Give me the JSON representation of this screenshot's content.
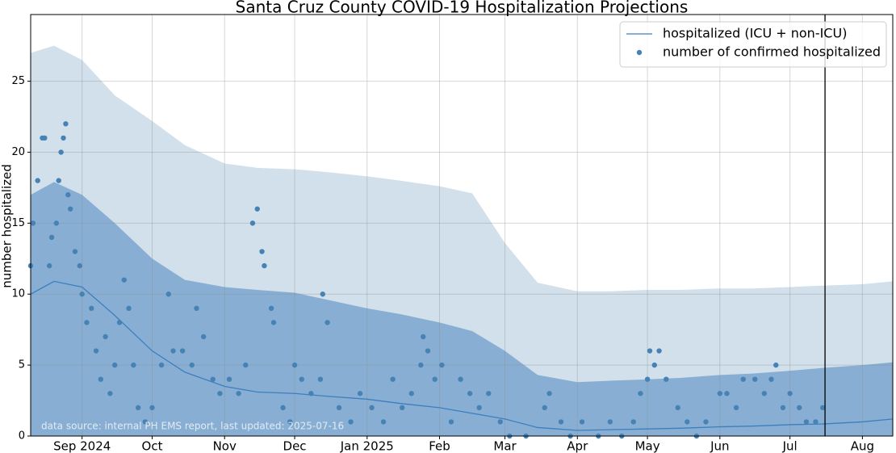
{
  "chart_data": {
    "type": "line",
    "title": "Santa Cruz County COVID-19 Hospitalization Projections",
    "y_label": "number hospitalized",
    "annotation": "data source: internal PH EMS report, last updated: 2025-07-16",
    "xlim": [
      "2024-08-10",
      "2025-08-14"
    ],
    "xticks": [
      {
        "value": "2024-09-01",
        "label": "Sep 2024"
      },
      {
        "value": "2024-10-01",
        "label": "Oct"
      },
      {
        "value": "2024-11-01",
        "label": "Nov"
      },
      {
        "value": "2024-12-01",
        "label": "Dec"
      },
      {
        "value": "2025-01-01",
        "label": "Jan 2025"
      },
      {
        "value": "2025-02-01",
        "label": "Feb"
      },
      {
        "value": "2025-03-01",
        "label": "Mar"
      },
      {
        "value": "2025-04-01",
        "label": "Apr"
      },
      {
        "value": "2025-05-01",
        "label": "May"
      },
      {
        "value": "2025-06-01",
        "label": "Jun"
      },
      {
        "value": "2025-07-01",
        "label": "Jul"
      },
      {
        "value": "2025-08-01",
        "label": "Aug"
      }
    ],
    "ylim": [
      0,
      29.7
    ],
    "yticks": [
      0,
      5,
      10,
      15,
      20,
      25
    ],
    "grid": true,
    "legend": "upper right",
    "vline_x": "2025-07-16",
    "band_x": [
      "2024-08-10",
      "2024-08-20",
      "2024-09-01",
      "2024-09-15",
      "2024-10-01",
      "2024-10-15",
      "2024-11-01",
      "2024-11-15",
      "2024-12-01",
      "2024-12-15",
      "2025-01-01",
      "2025-01-15",
      "2025-02-01",
      "2025-02-15",
      "2025-03-01",
      "2025-03-15",
      "2025-04-01",
      "2025-04-15",
      "2025-05-01",
      "2025-05-15",
      "2025-06-01",
      "2025-06-15",
      "2025-07-01",
      "2025-07-15",
      "2025-08-01",
      "2025-08-14"
    ],
    "bands": [
      {
        "color": "#d2e0ec",
        "upper": [
          27.0,
          27.5,
          26.5,
          24.0,
          22.2,
          20.5,
          19.2,
          18.9,
          18.8,
          18.6,
          18.3,
          18.0,
          17.6,
          17.1,
          13.6,
          10.8,
          10.2,
          10.2,
          10.3,
          10.3,
          10.4,
          10.4,
          10.5,
          10.6,
          10.7,
          10.9
        ],
        "lower": [
          2.5,
          3.9,
          3.0,
          0.5,
          0,
          0,
          0,
          0,
          0,
          0,
          0,
          0,
          0,
          0,
          0,
          0,
          0,
          0,
          0,
          0,
          0,
          0,
          0,
          0,
          0,
          0
        ]
      },
      {
        "color": "#88afd3",
        "upper": [
          17.0,
          17.9,
          17.0,
          15.0,
          12.5,
          11.0,
          10.5,
          10.3,
          10.1,
          9.6,
          9.0,
          8.6,
          8.0,
          7.4,
          6.0,
          4.3,
          3.8,
          3.9,
          4.0,
          4.1,
          4.3,
          4.4,
          4.6,
          4.8,
          5.0,
          5.2
        ],
        "lower": [
          0,
          0,
          0,
          0,
          0,
          0,
          0,
          0,
          0,
          0,
          0,
          0,
          0,
          0,
          0,
          0,
          0,
          0,
          0,
          0,
          0,
          0,
          0,
          0,
          0,
          0
        ]
      }
    ],
    "series": [
      {
        "name": "hospitalized (ICU + non-ICU)",
        "kind": "line",
        "color": "#3d7ebf",
        "x": [
          "2024-08-10",
          "2024-08-20",
          "2024-09-01",
          "2024-09-15",
          "2024-10-01",
          "2024-10-15",
          "2024-11-01",
          "2024-11-15",
          "2024-12-01",
          "2024-12-15",
          "2025-01-01",
          "2025-01-15",
          "2025-02-01",
          "2025-02-15",
          "2025-03-01",
          "2025-03-15",
          "2025-04-01",
          "2025-04-15",
          "2025-05-01",
          "2025-05-15",
          "2025-06-01",
          "2025-06-15",
          "2025-07-01",
          "2025-07-15",
          "2025-08-01",
          "2025-08-14"
        ],
        "values": [
          10.0,
          10.9,
          10.5,
          8.5,
          6.0,
          4.5,
          3.5,
          3.1,
          3.0,
          2.8,
          2.6,
          2.3,
          2.0,
          1.6,
          1.2,
          0.6,
          0.4,
          0.45,
          0.5,
          0.55,
          0.65,
          0.7,
          0.8,
          0.85,
          1.0,
          1.2
        ]
      },
      {
        "name": "number of confirmed hospitalized",
        "kind": "scatter",
        "color": "#4682b4",
        "x": [
          "2024-08-10",
          "2024-08-11",
          "2024-08-13",
          "2024-08-15",
          "2024-08-16",
          "2024-08-18",
          "2024-08-19",
          "2024-08-21",
          "2024-08-22",
          "2024-08-23",
          "2024-08-24",
          "2024-08-25",
          "2024-08-26",
          "2024-08-27",
          "2024-08-29",
          "2024-08-31",
          "2024-09-01",
          "2024-09-03",
          "2024-09-05",
          "2024-09-07",
          "2024-09-09",
          "2024-09-11",
          "2024-09-13",
          "2024-09-15",
          "2024-09-17",
          "2024-09-19",
          "2024-09-21",
          "2024-09-23",
          "2024-09-25",
          "2024-09-28",
          "2024-10-01",
          "2024-10-05",
          "2024-10-08",
          "2024-10-10",
          "2024-10-14",
          "2024-10-18",
          "2024-10-20",
          "2024-10-23",
          "2024-10-27",
          "2024-10-30",
          "2024-11-03",
          "2024-11-07",
          "2024-11-10",
          "2024-11-13",
          "2024-11-15",
          "2024-11-17",
          "2024-11-18",
          "2024-11-21",
          "2024-11-22",
          "2024-11-26",
          "2024-11-29",
          "2024-12-01",
          "2024-12-04",
          "2024-12-08",
          "2024-12-12",
          "2024-12-13",
          "2024-12-15",
          "2024-12-20",
          "2024-12-25",
          "2024-12-29",
          "2025-01-03",
          "2025-01-08",
          "2025-01-12",
          "2025-01-16",
          "2025-01-20",
          "2025-01-24",
          "2025-01-25",
          "2025-01-27",
          "2025-01-30",
          "2025-02-02",
          "2025-02-06",
          "2025-02-10",
          "2025-02-14",
          "2025-02-18",
          "2025-02-22",
          "2025-02-27",
          "2025-03-03",
          "2025-03-10",
          "2025-03-18",
          "2025-03-20",
          "2025-03-25",
          "2025-03-29",
          "2025-04-03",
          "2025-04-10",
          "2025-04-15",
          "2025-04-20",
          "2025-04-25",
          "2025-04-28",
          "2025-05-01",
          "2025-05-02",
          "2025-05-04",
          "2025-05-06",
          "2025-05-09",
          "2025-05-14",
          "2025-05-18",
          "2025-05-22",
          "2025-05-26",
          "2025-06-01",
          "2025-06-04",
          "2025-06-08",
          "2025-06-11",
          "2025-06-16",
          "2025-06-20",
          "2025-06-23",
          "2025-06-25",
          "2025-06-28",
          "2025-07-01",
          "2025-07-05",
          "2025-07-08",
          "2025-07-12",
          "2025-07-15"
        ],
        "values": [
          12,
          15,
          18,
          21,
          21,
          12,
          14,
          15,
          18,
          20,
          21,
          22,
          17,
          16,
          13,
          12,
          10,
          8,
          9,
          6,
          4,
          7,
          3,
          5,
          8,
          11,
          9,
          5,
          2,
          1,
          2,
          5,
          10,
          6,
          6,
          5,
          9,
          7,
          4,
          3,
          4,
          3,
          5,
          15,
          16,
          13,
          12,
          9,
          8,
          2,
          1,
          5,
          4,
          3,
          4,
          10,
          8,
          2,
          1,
          3,
          2,
          1,
          4,
          2,
          3,
          5,
          7,
          6,
          4,
          5,
          1,
          4,
          3,
          2,
          3,
          1,
          0,
          0,
          2,
          3,
          1,
          0,
          1,
          0,
          1,
          0,
          1,
          3,
          4,
          6,
          5,
          6,
          4,
          2,
          1,
          0,
          1,
          3,
          3,
          2,
          4,
          4,
          3,
          4,
          5,
          2,
          3,
          2,
          1,
          1,
          2
        ]
      }
    ]
  }
}
